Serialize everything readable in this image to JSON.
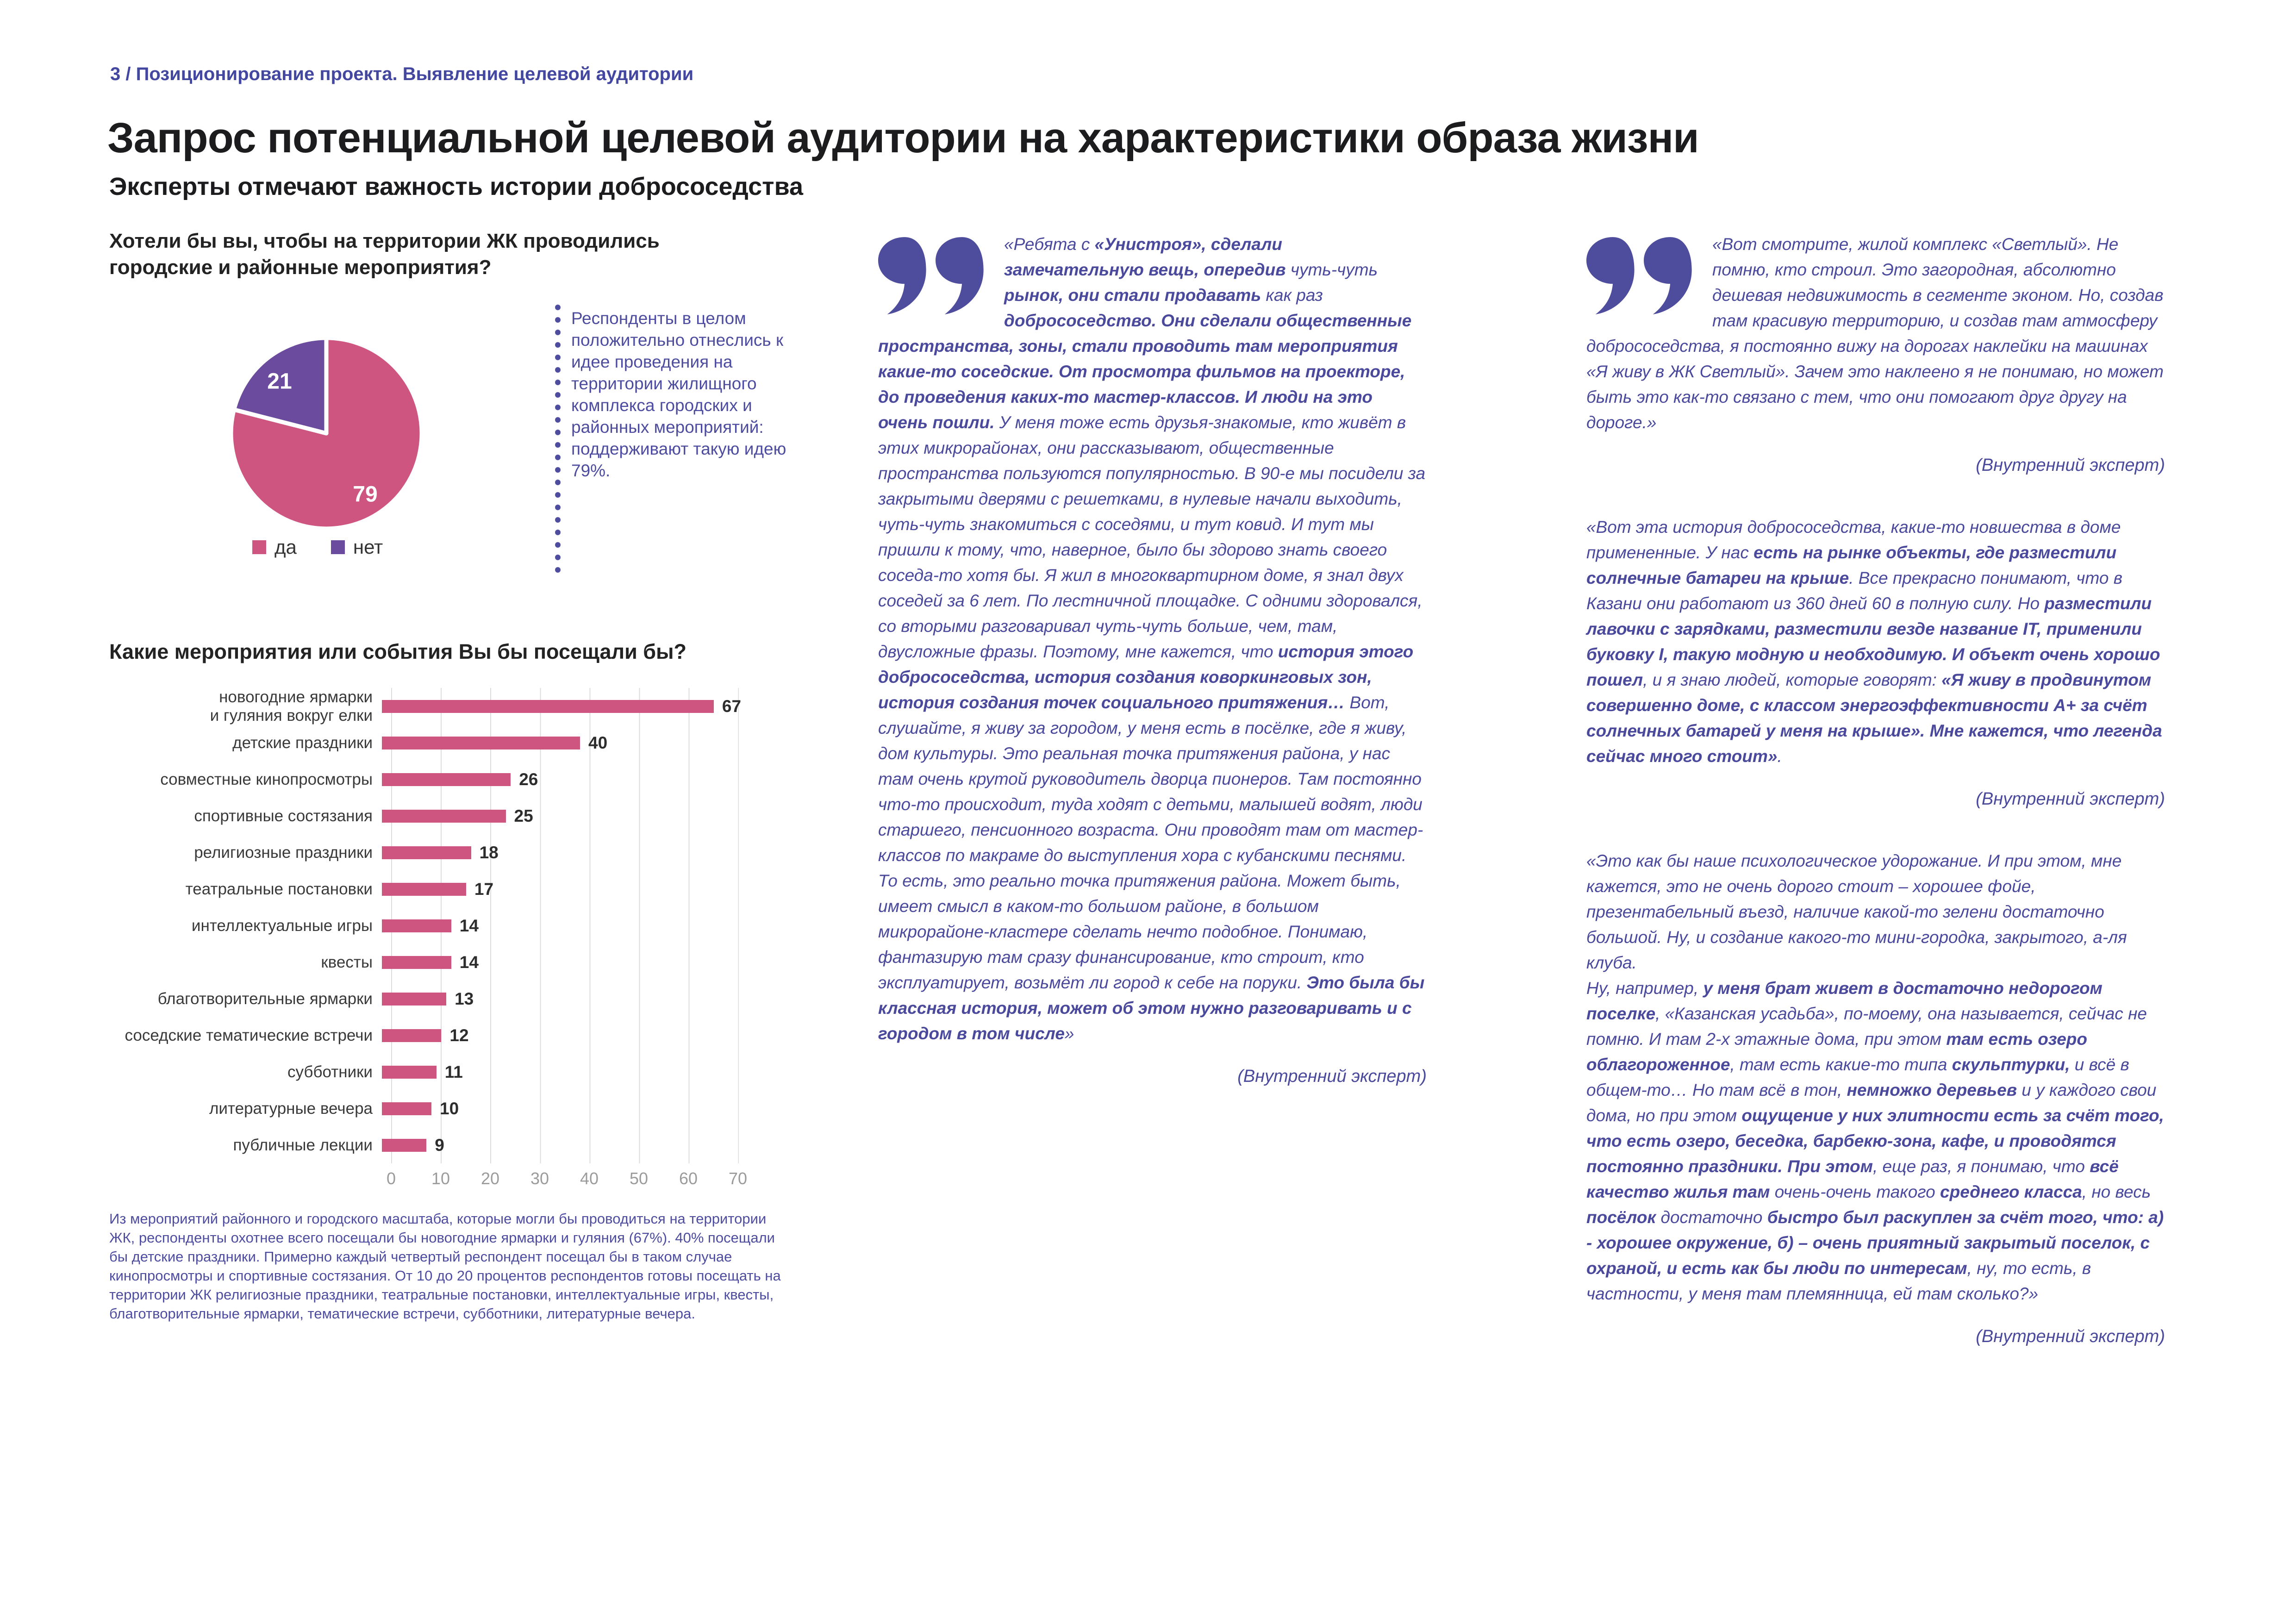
{
  "page": {
    "breadcrumb": "3 / Позиционирование проекта. Выявление целевой аудитории",
    "title": "Запрос потенциальной целевой аудитории на характеристики образа жизни",
    "subtitle": "Эксперты отмечают важность истории добрососедства"
  },
  "colors": {
    "accent_pink": "#ce5580",
    "accent_purple": "#6a4b9d",
    "quote_icon": "#4e4c9d",
    "note_text": "#4d4c9f"
  },
  "pie_section": {
    "question": "Хотели бы вы, чтобы на территории ЖК проводились городские и районные мероприятия?",
    "annotation": "Респонденты в целом положительно отнеслись к идее проведения на территории жилищного комплекса городских и районных мероприятий: поддерживают такую идею 79%."
  },
  "bar_section": {
    "title": "Какие мероприятия или события Вы бы посещали бы?",
    "footnote": "Из мероприятий районного и городского масштаба, которые могли бы проводиться на территории ЖК, респонденты охотнее всего посещали бы новогодние ярмарки и гуляния (67%). 40% посещали бы детские праздники. Примерно каждый четвертый респондент посещал бы в таком случае кинопросмотры и спортивные состязания. От 10 до 20 процентов респондентов готовы посещать на территории ЖК религиозные праздники, театральные постановки, интеллектуальные игры, квесты, благотворительные ярмарки, тематические встречи, субботники, литературные вечера."
  },
  "chart_data": [
    {
      "type": "pie",
      "title": "Хотели бы вы, чтобы на территории ЖК проводились городские и районные мероприятия?",
      "labels": [
        "да",
        "нет"
      ],
      "values": [
        79,
        21
      ],
      "colors": [
        "#ce5580",
        "#6a4b9d"
      ],
      "legend_position": "bottom",
      "start_angle": "12 o'clock, clockwise"
    },
    {
      "type": "bar",
      "orientation": "horizontal",
      "title": "Какие мероприятия или события Вы бы посещали бы?",
      "categories": [
        "новогодние ярмарки\nи гуляния вокруг елки",
        "детские праздники",
        "совместные кинопросмотры",
        "спортивные состязания",
        "религиозные праздники",
        "театральные постановки",
        "интеллектуальные игры",
        "квесты",
        "благотворительные ярмарки",
        "соседские тематические встречи",
        "субботники",
        "литературные вечера",
        "публичные лекции"
      ],
      "values": [
        67,
        40,
        26,
        25,
        18,
        17,
        14,
        14,
        13,
        12,
        11,
        10,
        9
      ],
      "xticks": [
        0,
        10,
        20,
        30,
        40,
        50,
        60,
        70
      ],
      "xlim": [
        0,
        70
      ],
      "bar_color": "#ce5580",
      "grid": true,
      "xlabel": "",
      "ylabel": ""
    }
  ],
  "quotes": {
    "mid": {
      "segments": [
        {
          "t": "«Ребята с ",
          "b": false
        },
        {
          "t": "«Унистроя», сделали замечательную вещь, опередив ",
          "b": true
        },
        {
          "t": "чуть-чуть ",
          "b": false
        },
        {
          "t": "рынок, они стали продавать ",
          "b": true
        },
        {
          "t": "как раз ",
          "b": false
        },
        {
          "t": "добрососедство. Они сделали общественные пространства, зоны, стали проводить там мероприятия какие-то соседские. От просмотра фильмов на проекторе, до проведения каких-то мастер-классов. И люди на это очень пошли. ",
          "b": true
        },
        {
          "t": "У меня тоже есть друзья-знакомые, кто живёт в этих микрорайонах, они рассказывают, общественные пространства пользуются популярностью. В 90-е мы посидели за закрытыми дверями с решетками, в нулевые начали выходить, чуть-чуть знакомиться с соседями, и тут ковид. И тут мы пришли к тому, что, наверное, было бы здорово знать своего соседа-то хотя бы. Я жил в многоквартирном доме, я знал двух соседей за 6 лет. По лестничной площадке. С одними здоровался, со вторыми разговаривал чуть-чуть больше, чем, там, двусложные фразы. Поэтому, мне кажется, что ",
          "b": false
        },
        {
          "t": "история этого добрососедства, история создания коворкинговых зон, история создания точек социального притяжения… ",
          "b": true
        },
        {
          "t": "Вот, слушайте, я живу за городом, у меня есть в посёлке, где я живу, дом культуры. Это реальная точка притяжения района, у нас там очень крутой руководитель дворца пионеров. Там постоянно что-то происходит, туда ходят с детьми, малышей водят, люди старшего, пенсионного возраста. Они проводят там от мастер-классов по макраме до выступления хора с кубанскими песнями. То есть, это реально точка притяжения района. Может быть, имеет смысл в каком-то большом районе, в большом микрорайоне-кластере сделать нечто подобное. Понимаю, фантазирую там сразу финансирование, кто строит, кто эксплуатирует, возьмёт ли город к себе на поруки. ",
          "b": false
        },
        {
          "t": "Это была бы классная история, может об этом нужно разговаривать и с городом в том числе",
          "b": true
        },
        {
          "t": "»",
          "b": false
        }
      ],
      "attribution": "(Внутренний эксперт)"
    },
    "right1": {
      "text": "«Вот смотрите, жилой комплекс «Светлый». Не помню, кто строил. Это загородная, абсолютно дешевая недвижимость в сегменте эконом. Но, создав там красивую территорию, и создав там атмосферу добрососедства, я постоянно вижу на дорогах наклейки на машинах «Я живу в ЖК Светлый». Зачем это наклеено я не понимаю, но может быть это как-то связано с тем, что они помогают друг другу на дороге.»",
      "attribution": "(Внутренний эксперт)"
    },
    "right2": {
      "segments": [
        {
          "t": "«Вот эта история добрососедства, какие-то новшества в доме примененные. У нас ",
          "b": false
        },
        {
          "t": "есть на рынке объекты, где разместили солнечные батареи на крыше",
          "b": true
        },
        {
          "t": ". Все прекрасно понимают, что в Казани они работают из 360 дней 60 в полную силу. Но ",
          "b": false
        },
        {
          "t": "разместили лавочки с зарядками, разместили везде название IT, применили буковку I, такую модную и необходимую. И объект очень хорошо пошел",
          "b": true
        },
        {
          "t": ", и я знаю людей, которые говорят: ",
          "b": false
        },
        {
          "t": "«Я живу в продвинутом совершенно доме, с классом энергоэффективности А+ за счёт солнечных батарей у меня на крыше». Мне кажется, что легенда сейчас много стоит»",
          "b": true
        },
        {
          "t": ".",
          "b": false
        }
      ],
      "attribution": "(Внутренний эксперт)"
    },
    "right3": {
      "paragraph1": "«Это как бы наше психологическое удорожание. И при этом, мне кажется, это не очень дорого стоит – хорошее фойе, презентабельный въезд, наличие какой-то зелени достаточно большой. Ну, и создание какого-то мини-городка, закрытого, а-ля клуба.",
      "segments": [
        {
          "t": "Ну, например, ",
          "b": false
        },
        {
          "t": "у меня брат живет в достаточно недорогом поселке",
          "b": true
        },
        {
          "t": ", «Казанская усадьба», по-моему, она называется, сейчас не помню. И там 2-х этажные дома, при этом ",
          "b": false
        },
        {
          "t": "там есть озеро облагороженное",
          "b": true
        },
        {
          "t": ", там есть какие-то типа ",
          "b": false
        },
        {
          "t": "скульптурки,",
          "b": true
        },
        {
          "t": " и всё в общем-то… Но там всё в тон, ",
          "b": false
        },
        {
          "t": "немножко деревьев",
          "b": true
        },
        {
          "t": " и у каждого свои дома, но при этом ",
          "b": false
        },
        {
          "t": "ощущение у них элитности есть за счёт того, что есть озеро, беседка, барбекю-зона, кафе, и проводятся постоянно праздники. При этом",
          "b": true
        },
        {
          "t": ", еще раз, я понимаю, что ",
          "b": false
        },
        {
          "t": "всё качество жилья там ",
          "b": true
        },
        {
          "t": "очень-очень такого ",
          "b": false
        },
        {
          "t": "среднего класса",
          "b": true
        },
        {
          "t": ", но весь ",
          "b": false
        },
        {
          "t": "посёлок ",
          "b": true
        },
        {
          "t": "достаточно ",
          "b": false
        },
        {
          "t": "быстро был раскуплен за счёт того, что: а) - хорошее окружение, б) – очень приятный закрытый поселок, с охраной, и есть как бы люди по интересам",
          "b": true
        },
        {
          "t": ", ну, то есть, в частности, у меня там племянница, ей там сколько?»",
          "b": false
        }
      ],
      "attribution": "(Внутренний эксперт)"
    }
  }
}
